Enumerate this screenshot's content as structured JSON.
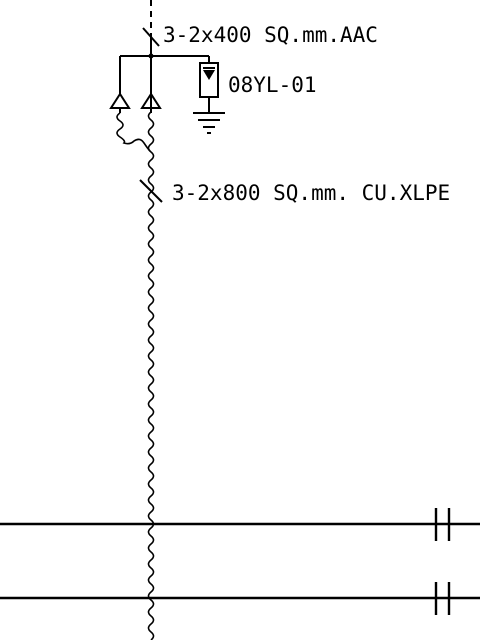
{
  "labels": {
    "overhead_conductor": "3-2x400 SQ.mm.AAC",
    "surge_arrester_tag": "08YL-01",
    "cable": "3-2x800 SQ.mm. CU.XLPE"
  },
  "colors": {
    "line": "#000000",
    "background": "#ffffff"
  }
}
